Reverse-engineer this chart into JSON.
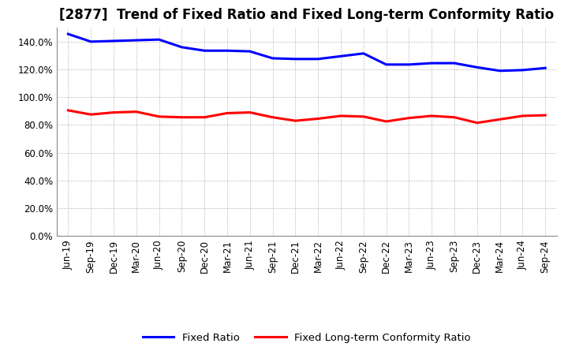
{
  "title": "[2877]  Trend of Fixed Ratio and Fixed Long-term Conformity Ratio",
  "x_labels": [
    "Jun-19",
    "Sep-19",
    "Dec-19",
    "Mar-20",
    "Jun-20",
    "Sep-20",
    "Dec-20",
    "Mar-21",
    "Jun-21",
    "Sep-21",
    "Dec-21",
    "Mar-22",
    "Jun-22",
    "Sep-22",
    "Dec-22",
    "Mar-23",
    "Jun-23",
    "Sep-23",
    "Dec-23",
    "Mar-24",
    "Jun-24",
    "Sep-24"
  ],
  "fixed_ratio": [
    145.5,
    140.0,
    140.5,
    141.0,
    141.5,
    136.0,
    133.5,
    133.5,
    133.0,
    128.0,
    127.5,
    127.5,
    129.5,
    131.5,
    123.5,
    123.5,
    124.5,
    124.5,
    121.5,
    119.0,
    119.5,
    121.0
  ],
  "fixed_lt_ratio": [
    90.5,
    87.5,
    89.0,
    89.5,
    86.0,
    85.5,
    85.5,
    88.5,
    89.0,
    85.5,
    83.0,
    84.5,
    86.5,
    86.0,
    82.5,
    85.0,
    86.5,
    85.5,
    81.5,
    84.0,
    86.5,
    87.0
  ],
  "fixed_ratio_color": "#0000FF",
  "fixed_lt_ratio_color": "#FF0000",
  "ylim": [
    0,
    150
  ],
  "yticks": [
    0,
    20,
    40,
    60,
    80,
    100,
    120,
    140
  ],
  "background_color": "#FFFFFF",
  "grid_color": "#999999",
  "legend_fixed": "Fixed Ratio",
  "legend_lt": "Fixed Long-term Conformity Ratio",
  "title_fontsize": 12,
  "axis_fontsize": 8.5,
  "legend_fontsize": 9.5
}
